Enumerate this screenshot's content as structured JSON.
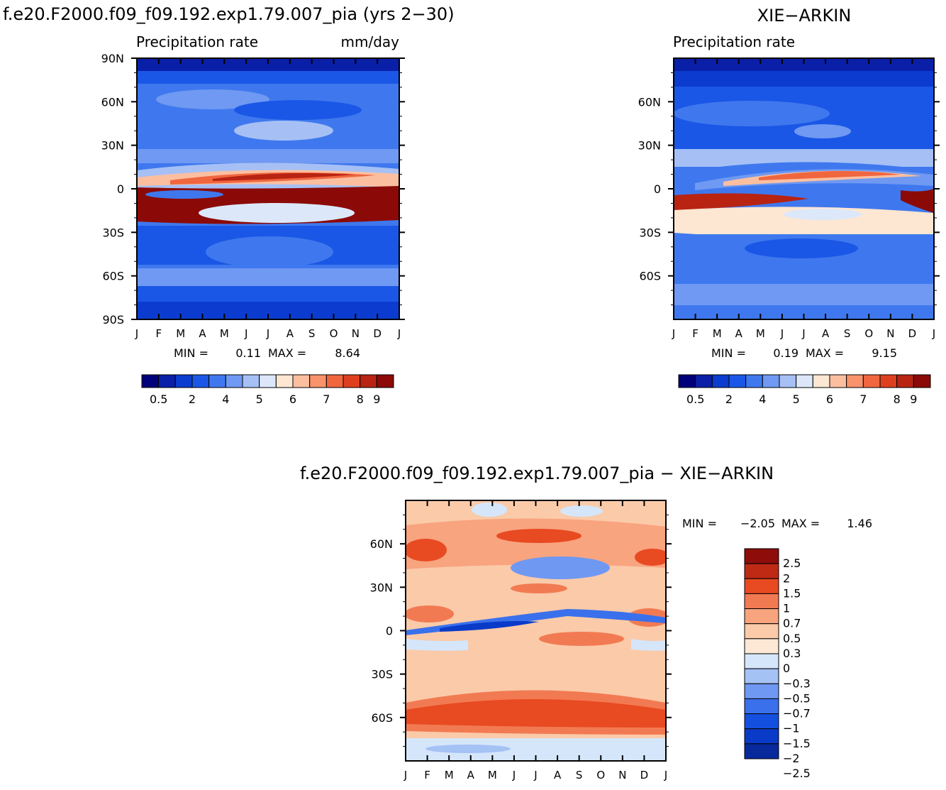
{
  "colors": {
    "abs": [
      "#00007a",
      "#0a1fa8",
      "#0b3ccf",
      "#1b57e6",
      "#3f78ee",
      "#6f99f2",
      "#a6c0f5",
      "#dce8fa",
      "#fde6d2",
      "#fbbfa0",
      "#f8936b",
      "#f0663f",
      "#de3f1e",
      "#b82312",
      "#8b0a08"
    ],
    "diff": [
      "#08299c",
      "#0a3ac8",
      "#1450e0",
      "#3a70ec",
      "#6f98f2",
      "#a5c2f5",
      "#d5e6fa",
      "#fde8d6",
      "#fbcaa9",
      "#f8a47f",
      "#f27a52",
      "#e84a22",
      "#be2a14",
      "#8e0d0a"
    ]
  },
  "months": [
    "J",
    "F",
    "M",
    "A",
    "M",
    "J",
    "J",
    "A",
    "S",
    "O",
    "N",
    "D",
    "J"
  ],
  "panels": {
    "model": {
      "title": "f.e20.F2000.f09_f09.192.exp1.79.007_pia (yrs 2−30)",
      "subtitle": "Precipitation rate",
      "units": "mm/day",
      "lat_ticks": [
        "90N",
        "60N",
        "30N",
        "0",
        "30S",
        "60S",
        "90S"
      ],
      "min_label": "MIN =",
      "min_value": "0.11",
      "max_label": "MAX =",
      "max_value": "8.64",
      "colorbar_labels": [
        "0.5",
        "2",
        "4",
        "5",
        "6",
        "7",
        "8",
        "9"
      ]
    },
    "obs": {
      "title": "XIE−ARKIN",
      "subtitle": "Precipitation rate",
      "lat_ticks": [
        "60N",
        "30N",
        "0",
        "30S",
        "60S"
      ],
      "min_label": "MIN =",
      "min_value": "0.19",
      "max_label": "MAX =",
      "max_value": "9.15",
      "colorbar_labels": [
        "0.5",
        "2",
        "4",
        "5",
        "6",
        "7",
        "8",
        "9"
      ]
    },
    "diff": {
      "title": "f.e20.F2000.f09_f09.192.exp1.79.007_pia − XIE−ARKIN",
      "lat_ticks": [
        "60N",
        "30N",
        "0",
        "30S",
        "60S"
      ],
      "min_label": "MIN =",
      "min_value": "−2.05",
      "max_label": "MAX =",
      "max_value": "1.46",
      "colorbar_labels": [
        "2.5",
        "2",
        "1.5",
        "1",
        "0.7",
        "0.5",
        "0.3",
        "0",
        "−0.3",
        "−0.5",
        "−0.7",
        "−1",
        "−1.5",
        "−2",
        "−2.5"
      ]
    }
  },
  "chart_data": [
    {
      "type": "heatmap",
      "title": "f.e20.F2000.f09_f09.192.exp1.79.007_pia (yrs 2−30)",
      "subtitle": "Precipitation rate (mm/day)",
      "x": [
        "J",
        "F",
        "M",
        "A",
        "M",
        "J",
        "J",
        "A",
        "S",
        "O",
        "N",
        "D",
        "J"
      ],
      "ylabel": "latitude",
      "ylim": [
        -90,
        90
      ],
      "levels": [
        0.5,
        1,
        2,
        3,
        4,
        4.5,
        5,
        5.5,
        6,
        6.5,
        7,
        7.5,
        8,
        9
      ],
      "min": 0.11,
      "max": 8.64,
      "peak": {
        "lat": 8,
        "month": "Aug",
        "value": 8.64
      }
    },
    {
      "type": "heatmap",
      "title": "XIE−ARKIN",
      "subtitle": "Precipitation rate",
      "x": [
        "J",
        "F",
        "M",
        "A",
        "M",
        "J",
        "J",
        "A",
        "S",
        "O",
        "N",
        "D",
        "J"
      ],
      "ylabel": "latitude",
      "ylim": [
        -90,
        90
      ],
      "levels": [
        0.5,
        1,
        2,
        3,
        4,
        4.5,
        5,
        5.5,
        6,
        6.5,
        7,
        7.5,
        8,
        9
      ],
      "min": 0.19,
      "max": 9.15,
      "peak": {
        "lat": 9,
        "month": "Aug",
        "value": 9.15
      }
    },
    {
      "type": "heatmap",
      "title": "f.e20.F2000.f09_f09.192.exp1.79.007_pia − XIE−ARKIN",
      "x": [
        "J",
        "F",
        "M",
        "A",
        "M",
        "J",
        "J",
        "A",
        "S",
        "O",
        "N",
        "D",
        "J"
      ],
      "ylabel": "latitude",
      "ylim": [
        -90,
        90
      ],
      "levels": [
        -2.5,
        -2,
        -1.5,
        -1,
        -0.7,
        -0.5,
        -0.3,
        0,
        0.3,
        0.5,
        0.7,
        1,
        1.5,
        2,
        2.5
      ],
      "min": -2.05,
      "max": 1.46
    }
  ]
}
